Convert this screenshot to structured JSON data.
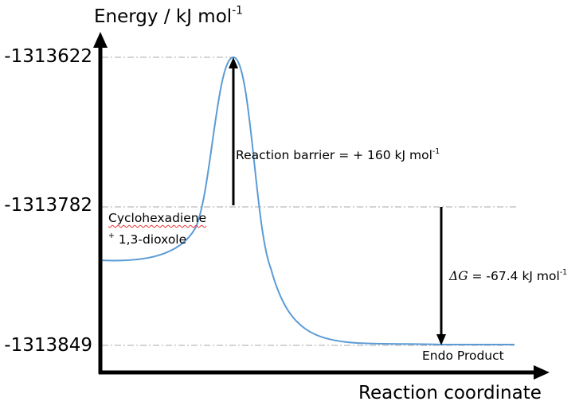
{
  "chart_data": {
    "type": "line",
    "title": "",
    "ylabel": "Energy / kJ mol",
    "ylabel_sup": "-1",
    "xlabel": "Reaction coordinate",
    "levels": [
      {
        "name": "reactants",
        "label": "-1313782",
        "value": -1313782
      },
      {
        "name": "transition-state",
        "label": "-1313622",
        "value": -1313622
      },
      {
        "name": "product",
        "label": "-1313849",
        "value": -1313849
      }
    ],
    "reactant_label_line1": "Cyclohexadiene",
    "reactant_label_line2_sup": "+",
    "reactant_label_line2": " 1,3-dioxole",
    "product_label": "Endo Product",
    "barrier_label": "Reaction barrier = + 160 kJ mol",
    "barrier_label_sup": "-1",
    "dg_symbol": "ΔG",
    "dg_label": " = -67.4 kJ mol",
    "dg_label_sup": "-1",
    "curve_color": "#5b9bd5"
  }
}
